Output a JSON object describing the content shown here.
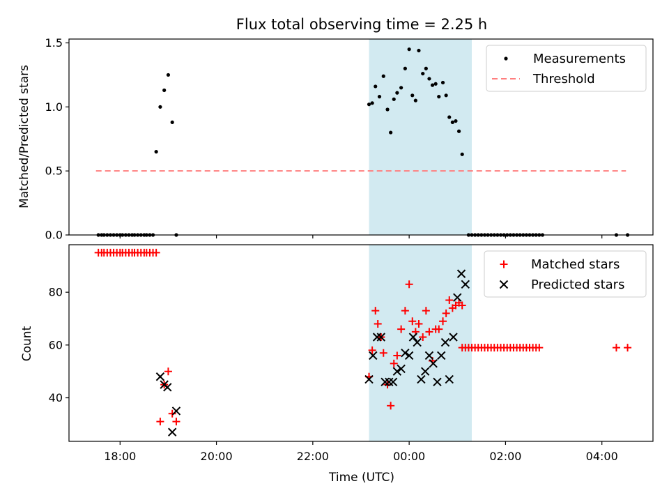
{
  "title": "Flux total observing time = 2.25 h",
  "chart_data": [
    {
      "type": "scatter",
      "panel": "top",
      "ylabel": "Matched/Predicted stars",
      "ylim": [
        0,
        1.53
      ],
      "yticks": [
        0.0,
        0.5,
        1.0,
        1.5
      ],
      "ytick_labels": [
        "0.0",
        "0.5",
        "1.0",
        "1.5"
      ],
      "shaded_interval": [
        "23:10",
        "01:18"
      ],
      "shade_color": "#add8e6",
      "legend_position": "upper right",
      "series": [
        {
          "name": "Measurements",
          "marker": "dot",
          "color": "#000000",
          "x": [
            "17:33",
            "17:37",
            "17:40",
            "17:44",
            "17:48",
            "17:52",
            "17:56",
            "18:00",
            "18:03",
            "18:07",
            "18:11",
            "18:15",
            "18:18",
            "18:22",
            "18:26",
            "18:30",
            "18:33",
            "18:37",
            "18:41",
            "18:45",
            "18:50",
            "18:55",
            "19:00",
            "19:05",
            "19:10",
            "23:10",
            "23:14",
            "23:18",
            "23:23",
            "23:28",
            "23:33",
            "23:37",
            "23:41",
            "23:45",
            "23:50",
            "23:55",
            "24:00",
            "24:04",
            "24:08",
            "24:12",
            "24:17",
            "24:21",
            "24:25",
            "24:29",
            "24:33",
            "24:37",
            "24:42",
            "24:46",
            "24:50",
            "24:54",
            "24:58",
            "25:02",
            "25:06",
            "25:14",
            "25:18",
            "25:22",
            "25:26",
            "25:30",
            "25:34",
            "25:38",
            "25:42",
            "25:46",
            "25:50",
            "25:54",
            "25:58",
            "26:02",
            "26:06",
            "26:10",
            "26:14",
            "26:18",
            "26:22",
            "26:26",
            "26:30",
            "26:34",
            "26:38",
            "26:42",
            "26:46",
            "28:18",
            "28:32"
          ],
          "y": [
            0,
            0,
            0,
            0,
            0,
            0,
            0,
            0,
            0,
            0,
            0,
            0,
            0,
            0,
            0,
            0,
            0,
            0,
            0,
            0.65,
            1.0,
            1.13,
            1.25,
            0.88,
            0,
            1.02,
            1.03,
            1.16,
            1.08,
            1.24,
            0.98,
            0.8,
            1.06,
            1.11,
            1.15,
            1.3,
            1.45,
            1.09,
            1.05,
            1.44,
            1.26,
            1.3,
            1.22,
            1.17,
            1.18,
            1.08,
            1.19,
            1.09,
            0.92,
            0.88,
            0.89,
            0.81,
            0.63,
            0,
            0,
            0,
            0,
            0,
            0,
            0,
            0,
            0,
            0,
            0,
            0,
            0,
            0,
            0,
            0,
            0,
            0,
            0,
            0,
            0,
            0,
            0,
            0,
            0,
            0
          ]
        },
        {
          "name": "Threshold",
          "marker": "dashed-line",
          "color": "#ff7f7f",
          "x": [
            "17:30",
            "04:30"
          ],
          "y": [
            0.5,
            0.5
          ]
        }
      ]
    },
    {
      "type": "scatter",
      "panel": "bottom",
      "xlabel": "Time (UTC)",
      "ylabel": "Count",
      "ylim": [
        23.5,
        98
      ],
      "yticks": [
        40,
        60,
        80
      ],
      "ytick_labels": [
        "40",
        "60",
        "80"
      ],
      "xticks": [
        "18:00",
        "20:00",
        "22:00",
        "00:00",
        "02:00",
        "04:00"
      ],
      "shaded_interval": [
        "23:10",
        "01:18"
      ],
      "shade_color": "#add8e6",
      "legend_position": "upper right",
      "series": [
        {
          "name": "Matched stars",
          "marker": "plus",
          "color": "#ff0000",
          "x": [
            "17:33",
            "17:37",
            "17:40",
            "17:44",
            "17:48",
            "17:52",
            "17:56",
            "18:00",
            "18:03",
            "18:07",
            "18:11",
            "18:15",
            "18:18",
            "18:22",
            "18:26",
            "18:30",
            "18:33",
            "18:37",
            "18:41",
            "18:45",
            "18:50",
            "18:55",
            "19:00",
            "19:05",
            "19:10",
            "23:10",
            "23:14",
            "23:18",
            "23:21",
            "23:25",
            "23:28",
            "23:33",
            "23:37",
            "23:41",
            "23:45",
            "23:50",
            "23:55",
            "24:00",
            "24:04",
            "24:08",
            "24:12",
            "24:17",
            "24:21",
            "24:25",
            "24:29",
            "24:33",
            "24:37",
            "24:42",
            "24:46",
            "24:50",
            "24:54",
            "24:58",
            "25:02",
            "25:06",
            "25:06",
            "25:10",
            "25:14",
            "25:18",
            "25:22",
            "25:26",
            "25:30",
            "25:34",
            "25:38",
            "25:42",
            "25:46",
            "25:50",
            "25:54",
            "25:58",
            "26:02",
            "26:06",
            "26:10",
            "26:14",
            "26:18",
            "26:22",
            "26:26",
            "26:30",
            "26:34",
            "26:38",
            "26:42",
            "28:18",
            "28:32"
          ],
          "y": [
            95,
            95,
            95,
            95,
            95,
            95,
            95,
            95,
            95,
            95,
            95,
            95,
            95,
            95,
            95,
            95,
            95,
            95,
            95,
            95,
            31,
            45,
            50,
            34,
            31,
            48,
            58,
            73,
            68,
            63,
            57,
            45,
            37,
            53,
            56,
            66,
            73,
            83,
            69,
            65,
            68,
            63,
            73,
            65,
            54,
            66,
            66,
            69,
            72,
            77,
            74,
            75,
            76,
            75,
            59,
            59,
            59,
            59,
            59,
            59,
            59,
            59,
            59,
            59,
            59,
            59,
            59,
            59,
            59,
            59,
            59,
            59,
            59,
            59,
            59,
            59,
            59,
            59,
            59,
            59,
            59
          ]
        },
        {
          "name": "Predicted stars",
          "marker": "x",
          "color": "#000000",
          "x": [
            "18:50",
            "18:55",
            "18:59",
            "19:05",
            "19:10",
            "23:10",
            "23:15",
            "23:20",
            "23:25",
            "23:30",
            "23:35",
            "23:40",
            "23:45",
            "23:50",
            "23:55",
            "24:00",
            "24:05",
            "24:10",
            "24:15",
            "24:20",
            "24:25",
            "24:30",
            "24:35",
            "24:40",
            "24:45",
            "24:50",
            "24:55",
            "25:00",
            "25:05",
            "25:10"
          ],
          "y": [
            48,
            45,
            44,
            27,
            35,
            47,
            56,
            63,
            63,
            46,
            46,
            46,
            50,
            51,
            57,
            56,
            63,
            61,
            47,
            50,
            56,
            53,
            46,
            56,
            61,
            47,
            63,
            78,
            87,
            83
          ]
        }
      ]
    }
  ]
}
